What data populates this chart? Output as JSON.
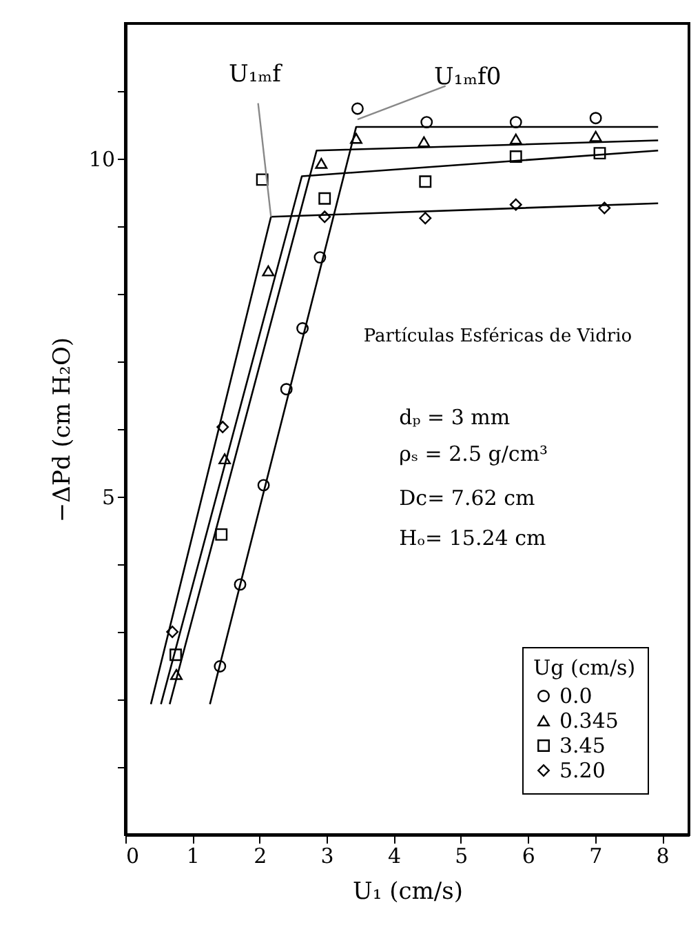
{
  "chart_data": {
    "type": "scatter",
    "xlabel": "U₁ (cm/s)",
    "ylabel": "−ΔPd (cm H₂O)",
    "legend_title": "Ug (cm/s)",
    "xlim": [
      0,
      8.4
    ],
    "ylim": [
      0,
      12
    ],
    "xticks": [
      0,
      1,
      2,
      3,
      4,
      5,
      6,
      7,
      8
    ],
    "yticks": [
      {
        "value": 1,
        "label": null
      },
      {
        "value": 2,
        "label": null
      },
      {
        "value": 3,
        "label": null
      },
      {
        "value": 4,
        "label": null
      },
      5,
      {
        "value": 6,
        "label": null
      },
      {
        "value": 7,
        "label": null
      },
      {
        "value": 8,
        "label": null
      },
      {
        "value": 9,
        "label": null
      },
      10,
      {
        "value": 11,
        "label": null
      }
    ],
    "grid": false,
    "legend": "bottom right",
    "series": [
      {
        "name": "0.0",
        "marker": "circle",
        "color": "#000000",
        "x": [
          1.41,
          1.71,
          2.06,
          2.4,
          2.64,
          2.9,
          3.46,
          4.49,
          5.82,
          7.01
        ],
        "values": [
          2.49,
          3.7,
          5.17,
          6.59,
          7.49,
          8.54,
          10.74,
          10.54,
          10.54,
          10.6
        ]
      },
      {
        "name": "0.345",
        "marker": "triangle",
        "color": "#000000",
        "x": [
          0.76,
          1.48,
          2.13,
          2.92,
          3.44,
          4.45,
          5.82,
          7.01
        ],
        "values": [
          2.37,
          5.56,
          8.34,
          9.93,
          10.3,
          10.25,
          10.29,
          10.33
        ]
      },
      {
        "name": "3.45",
        "marker": "square",
        "color": "#000000",
        "x": [
          0.75,
          1.43,
          2.04,
          2.97,
          4.47,
          5.82,
          7.07
        ],
        "values": [
          2.66,
          4.44,
          9.69,
          9.41,
          9.66,
          10.03,
          10.08
        ]
      },
      {
        "name": "5.20",
        "marker": "diamond",
        "color": "#000000",
        "x": [
          0.7,
          1.45,
          2.97,
          4.47,
          5.82,
          7.14
        ],
        "values": [
          3.0,
          6.03,
          9.14,
          9.12,
          9.32,
          9.27
        ]
      },
      {
        "type": "line",
        "color": "#000000",
        "x": [
          1.26,
          3.44,
          7.94
        ],
        "values": [
          1.93,
          10.47,
          10.47
        ]
      },
      {
        "type": "line",
        "color": "#000000",
        "x": [
          0.66,
          2.85,
          7.94
        ],
        "values": [
          1.93,
          10.12,
          10.27
        ]
      },
      {
        "type": "line",
        "color": "#000000",
        "x": [
          0.53,
          2.63,
          7.94
        ],
        "values": [
          1.93,
          9.74,
          10.12
        ]
      },
      {
        "type": "line",
        "color": "#000000",
        "x": [
          0.38,
          2.17,
          7.94
        ],
        "values": [
          1.93,
          9.14,
          9.34
        ]
      }
    ],
    "annotations": [
      {
        "text": "U₁ₘf",
        "x": 2.17,
        "y": 9.14
      },
      {
        "text": "U₁ₘf0",
        "x": 3.46,
        "y": 10.58
      },
      "Partículas Esféricas de Vidrio",
      "dₚ = 3 mm",
      "ρₛ = 2.5 g/cm³",
      "Dc= 7.62 cm",
      "Hₒ= 15.24 cm"
    ]
  }
}
